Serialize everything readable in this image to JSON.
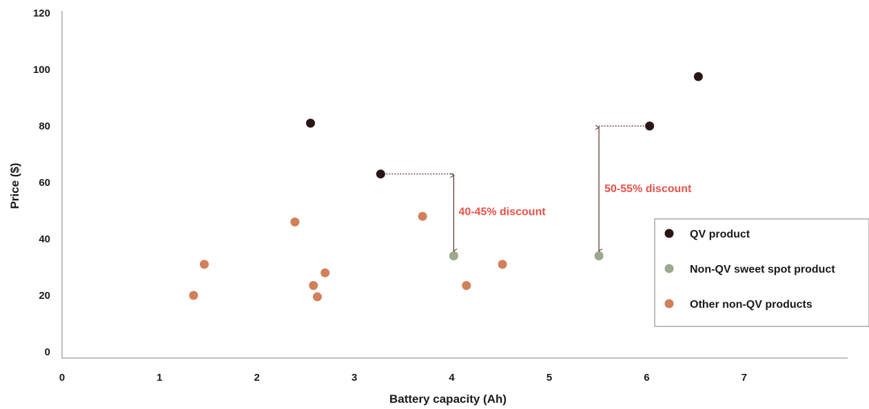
{
  "chart_data": {
    "type": "scatter",
    "title": "",
    "xlabel": "Battery capacity (Ah)",
    "ylabel": "Price ($)",
    "xlim": [
      0,
      8
    ],
    "ylim": [
      0,
      120
    ],
    "xticks": [
      "0",
      "1",
      "2",
      "3",
      "4",
      "5",
      "6",
      "7"
    ],
    "yticks": [
      "0",
      "20",
      "40",
      "60",
      "80",
      "100",
      "120"
    ],
    "grid": false,
    "legend_position": "right",
    "series": [
      {
        "name": "QV product",
        "color": "#2a1517",
        "points": [
          {
            "x": 2.55,
            "y": 81
          },
          {
            "x": 3.27,
            "y": 63
          },
          {
            "x": 6.03,
            "y": 80
          },
          {
            "x": 6.53,
            "y": 97.5
          }
        ]
      },
      {
        "name": "Non-QV sweet spot product",
        "color": "#9aaa8c",
        "points": [
          {
            "x": 4.02,
            "y": 34
          },
          {
            "x": 5.51,
            "y": 34
          }
        ]
      },
      {
        "name": "Other non-QV products",
        "color": "#d2805a",
        "points": [
          {
            "x": 1.35,
            "y": 20
          },
          {
            "x": 1.46,
            "y": 31
          },
          {
            "x": 2.39,
            "y": 46
          },
          {
            "x": 2.58,
            "y": 23.5
          },
          {
            "x": 2.62,
            "y": 19.5
          },
          {
            "x": 2.7,
            "y": 28
          },
          {
            "x": 3.7,
            "y": 48
          },
          {
            "x": 4.15,
            "y": 23.5
          },
          {
            "x": 4.52,
            "y": 31
          }
        ]
      }
    ],
    "annotations": [
      {
        "text": "40-45% discount",
        "from": {
          "x": 3.27,
          "y": 63
        },
        "to": {
          "x": 4.02,
          "y": 34
        },
        "color": "#e8524a"
      },
      {
        "text": "50-55% discount",
        "from": {
          "x": 6.03,
          "y": 80
        },
        "to": {
          "x": 5.51,
          "y": 34
        },
        "color": "#e8524a"
      }
    ]
  }
}
